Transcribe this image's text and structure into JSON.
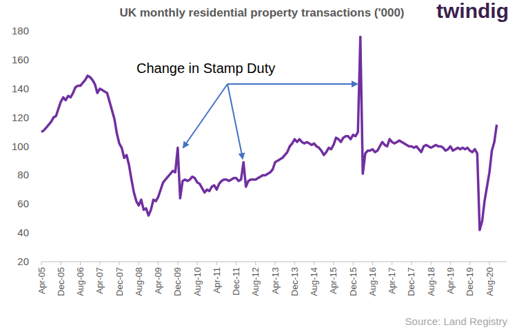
{
  "chart_data": {
    "type": "line",
    "title": "UK monthly residential property transactions ('000)",
    "annotation": "Change in Stamp Duty",
    "source": "Source: Land Registry",
    "logo": "twindig",
    "categories": [
      "Apr-05",
      null,
      null,
      null,
      null,
      null,
      null,
      null,
      "Dec-05",
      null,
      null,
      null,
      null,
      null,
      null,
      null,
      "Aug-06",
      null,
      null,
      null,
      null,
      null,
      null,
      null,
      "Apr-07",
      null,
      null,
      null,
      null,
      null,
      null,
      null,
      "Dec-07",
      null,
      null,
      null,
      null,
      null,
      null,
      null,
      "Aug-08",
      null,
      null,
      null,
      null,
      null,
      null,
      null,
      "Apr-09",
      null,
      null,
      null,
      null,
      null,
      null,
      null,
      "Dec-09",
      null,
      null,
      null,
      null,
      null,
      null,
      null,
      "Aug-10",
      null,
      null,
      null,
      null,
      null,
      null,
      null,
      "Apr-11",
      null,
      null,
      null,
      null,
      null,
      null,
      null,
      "Dec-11",
      null,
      null,
      null,
      null,
      null,
      null,
      null,
      "Aug-12",
      null,
      null,
      null,
      null,
      null,
      null,
      null,
      "Apr-13",
      null,
      null,
      null,
      null,
      null,
      null,
      null,
      "Dec-13",
      null,
      null,
      null,
      null,
      null,
      null,
      null,
      "Aug-14",
      null,
      null,
      null,
      null,
      null,
      null,
      null,
      "Apr-15",
      null,
      null,
      null,
      null,
      null,
      null,
      null,
      "Dec-15",
      null,
      null,
      null,
      null,
      null,
      null,
      null,
      "Aug-16",
      null,
      null,
      null,
      null,
      null,
      null,
      null,
      "Apr-17",
      null,
      null,
      null,
      null,
      null,
      null,
      null,
      "Dec-17",
      null,
      null,
      null,
      null,
      null,
      null,
      null,
      "Aug-18",
      null,
      null,
      null,
      null,
      null,
      null,
      null,
      "Apr-19",
      null,
      null,
      null,
      null,
      null,
      null,
      null,
      "Dec-19",
      null,
      null,
      null,
      null,
      null,
      null,
      null,
      "Aug-20",
      null,
      null,
      null
    ],
    "values": [
      110,
      111,
      113,
      115,
      117,
      120,
      121,
      126,
      131,
      134,
      132,
      135,
      134,
      137,
      141,
      142,
      142,
      144,
      146,
      149,
      148,
      146,
      143,
      137,
      140,
      139,
      138,
      137,
      131,
      125,
      119,
      109,
      102,
      99,
      92,
      94,
      87,
      77,
      68,
      62,
      59,
      63,
      56,
      57,
      52,
      56,
      63,
      62,
      65,
      70,
      75,
      77,
      79,
      81,
      83,
      82,
      99,
      64,
      76,
      77,
      76,
      77,
      79,
      78,
      75,
      74,
      71,
      68,
      70,
      69,
      72,
      73,
      70,
      74,
      76,
      77,
      77,
      76,
      77,
      78,
      78,
      76,
      77,
      89,
      72,
      76,
      77,
      77,
      77,
      78,
      79,
      80,
      80,
      81,
      82,
      84,
      89,
      90,
      91,
      92,
      94,
      96,
      100,
      102,
      105,
      103,
      105,
      103,
      102,
      103,
      102,
      101,
      102,
      100,
      99,
      97,
      94,
      96,
      99,
      98,
      101,
      106,
      105,
      103,
      106,
      107,
      107,
      105,
      108,
      107,
      110,
      176,
      81,
      95,
      97,
      97,
      98,
      96,
      97,
      100,
      103,
      101,
      100,
      105,
      103,
      102,
      103,
      104,
      103,
      102,
      101,
      100,
      100,
      99,
      100,
      98,
      96,
      100,
      101,
      100,
      99,
      100,
      101,
      100,
      100,
      99,
      97,
      98,
      100,
      97,
      98,
      99,
      98,
      99,
      98,
      99,
      97,
      96,
      98,
      95,
      42,
      48,
      62,
      72,
      82,
      97,
      103,
      115
    ],
    "color": "#7030a0",
    "ylim": [
      20,
      180
    ],
    "yticks": [
      20,
      40,
      60,
      80,
      100,
      120,
      140,
      160,
      180
    ],
    "grid": false
  }
}
